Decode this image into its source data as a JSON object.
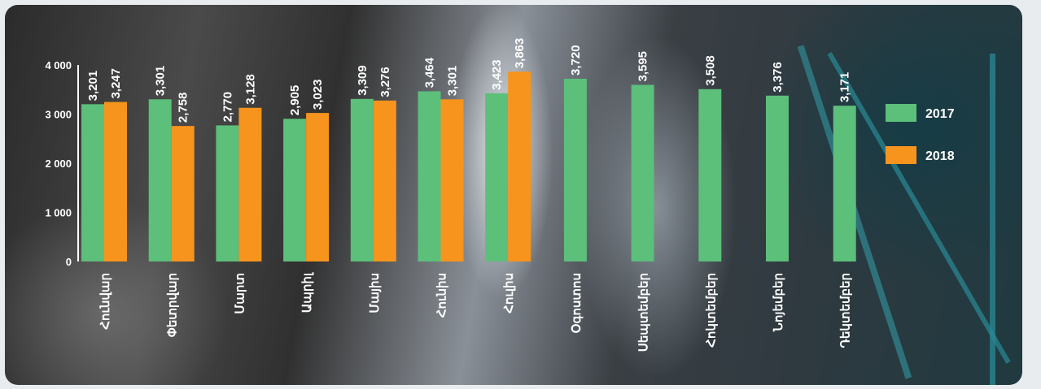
{
  "chart_data": {
    "type": "bar",
    "categories": [
      "Հունվար",
      "Փետրվար",
      "Մարտ",
      "Ապրիլ",
      "Մայիս",
      "Հունիս",
      "Հուլիս",
      "Օգոստոս",
      "Սեպտեմբեր",
      "Հոկտեմբեր",
      "Նոյեմբեր",
      "Դեկտեմբեր"
    ],
    "series": [
      {
        "name": "2017",
        "color": "#5cbf7a",
        "values": [
          3201,
          3301,
          2770,
          2905,
          3309,
          3464,
          3423,
          3720,
          3595,
          3508,
          3376,
          3171
        ],
        "labels": [
          "3,201",
          "3,301",
          "2,770",
          "2,905",
          "3,309",
          "3,464",
          "3,423",
          "3,720",
          "3,595",
          "3,508",
          "3,376",
          "3,171"
        ]
      },
      {
        "name": "2018",
        "color": "#f7941d",
        "values": [
          3247,
          2758,
          3128,
          3023,
          3276,
          3301,
          3863,
          null,
          null,
          null,
          null,
          null
        ],
        "labels": [
          "3,247",
          "2,758",
          "3,128",
          "3,023",
          "3,276",
          "3,301",
          "3,863",
          "",
          "",
          "",
          "",
          ""
        ]
      }
    ],
    "yticks": [
      0,
      1000,
      2000,
      3000,
      4000
    ],
    "ytick_labels": [
      "0",
      "1 000",
      "2 000",
      "3 000",
      "4 000"
    ],
    "ylim": [
      0,
      4000
    ],
    "legend": "right",
    "grid": false
  }
}
